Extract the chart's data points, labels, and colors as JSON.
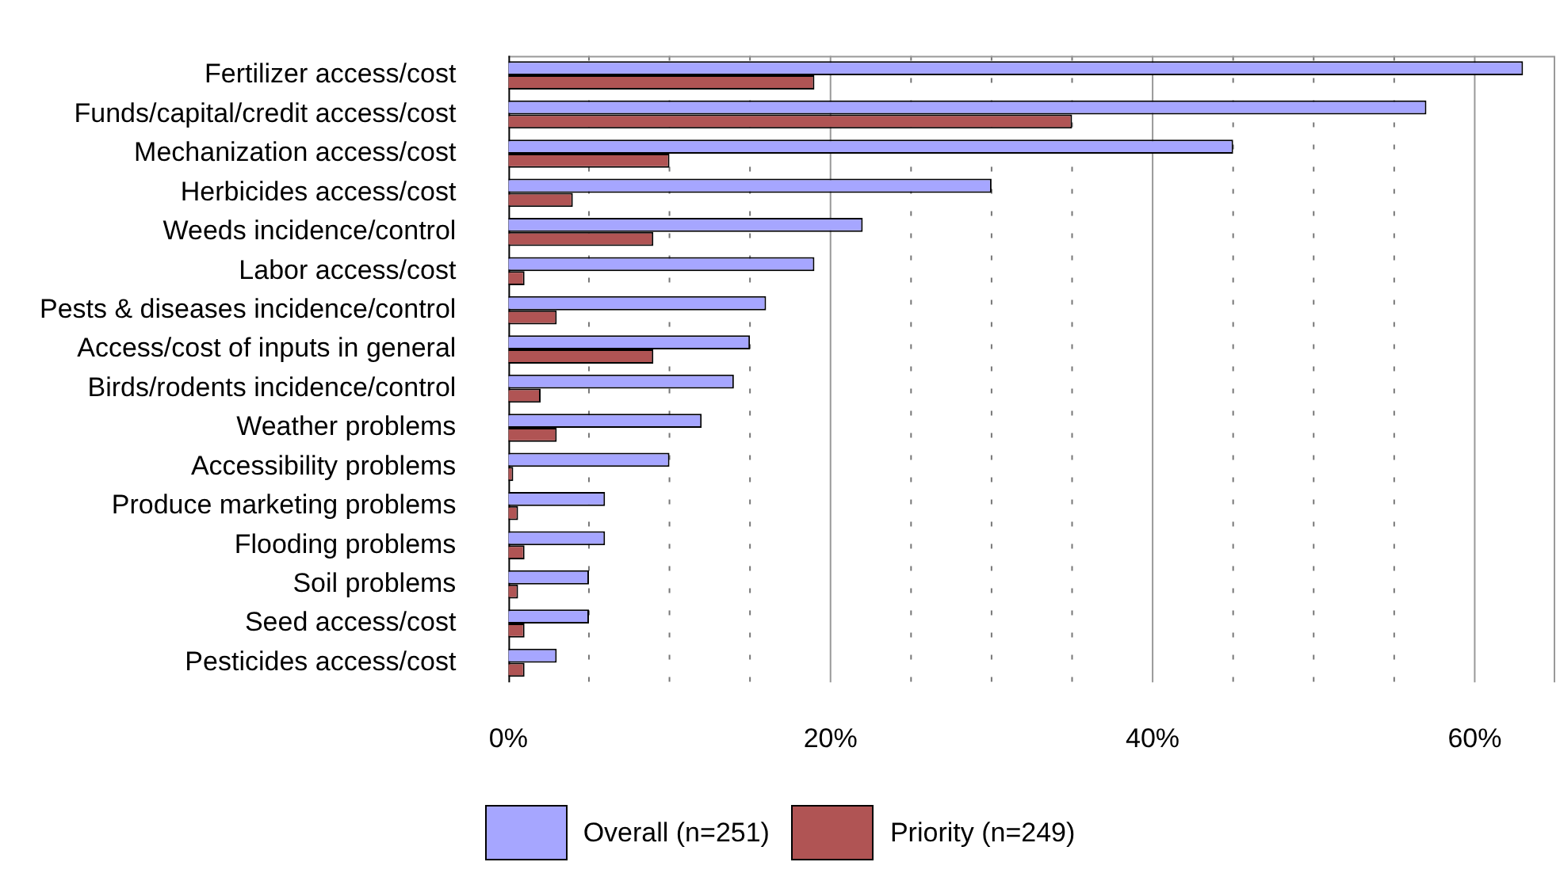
{
  "chart_data": {
    "type": "bar",
    "orientation": "horizontal",
    "categories": [
      "Fertilizer access/cost",
      "Funds/capital/credit access/cost",
      "Mechanization access/cost",
      "Herbicides access/cost",
      "Weeds incidence/control",
      "Labor access/cost",
      "Pests & diseases incidence/control",
      "Access/cost of inputs in general",
      "Birds/rodents incidence/control",
      "Weather problems",
      "Accessibility problems",
      "Produce marketing problems",
      "Flooding problems",
      "Soil problems",
      "Seed access/cost",
      "Pesticides access/cost"
    ],
    "series": [
      {
        "name": "Overall (n=251)",
        "color": "#a6a6ff",
        "values": [
          63,
          57,
          45,
          30,
          22,
          19,
          16,
          15,
          14,
          12,
          10,
          6,
          6,
          5,
          5,
          3
        ]
      },
      {
        "name": "Priority (n=249)",
        "color": "#b05454",
        "values": [
          19,
          35,
          10,
          4,
          9,
          1,
          3,
          9,
          2,
          3,
          0.3,
          0.6,
          1,
          0.6,
          1,
          1
        ]
      }
    ],
    "xlim": [
      0,
      65
    ],
    "xticks": [
      {
        "value": 0,
        "label": "0%"
      },
      {
        "value": 5,
        "label": null
      },
      {
        "value": 10,
        "label": null
      },
      {
        "value": 15,
        "label": null
      },
      {
        "value": 20,
        "label": "20%"
      },
      {
        "value": 25,
        "label": null
      },
      {
        "value": 30,
        "label": null
      },
      {
        "value": 35,
        "label": null
      },
      {
        "value": 40,
        "label": "40%"
      },
      {
        "value": 45,
        "label": null
      },
      {
        "value": 50,
        "label": null
      },
      {
        "value": 55,
        "label": null
      },
      {
        "value": 60,
        "label": "60%"
      }
    ],
    "grid": "x",
    "legend": "bottom"
  }
}
